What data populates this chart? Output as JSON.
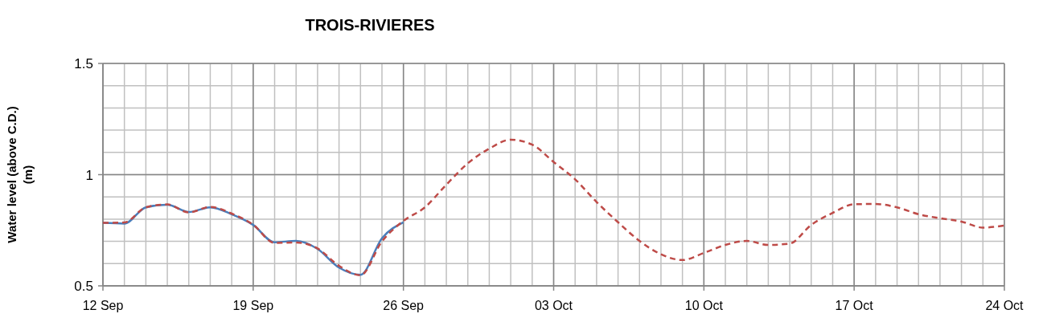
{
  "chart_data": {
    "type": "line",
    "title": "TROIS-RIVIERES",
    "ylabel": "Water level (above C.D.) (m)",
    "xlim": [
      "--09-12",
      "--10-24"
    ],
    "ylim": [
      0.5,
      1.5
    ],
    "yticks": [
      0.5,
      1,
      1.5
    ],
    "xticks": [
      {
        "value": "--09-12",
        "label": "12 Sep"
      },
      {
        "value": "--09-19",
        "label": "19 Sep"
      },
      {
        "value": "--09-26",
        "label": "26 Sep"
      },
      {
        "value": "--10-03",
        "label": "03 Oct"
      },
      {
        "value": "--10-10",
        "label": "10 Oct"
      },
      {
        "value": "--10-17",
        "label": "17 Oct"
      },
      {
        "value": "--10-24",
        "label": "24 Oct"
      }
    ],
    "grid": true,
    "marker": "none",
    "series": [
      {
        "color": "#4a7ebb",
        "line_style": "solid",
        "x": [
          "--09-12",
          "--09-13",
          "--09-14",
          "--09-15",
          "--09-16",
          "--09-17",
          "--09-18",
          "--09-19",
          "--09-20",
          "--09-21",
          "--09-22",
          "--09-23",
          "--09-24",
          "--09-25",
          "--09-26"
        ],
        "values": [
          0.783,
          0.78,
          0.853,
          0.865,
          0.832,
          0.853,
          0.822,
          0.774,
          0.696,
          0.702,
          0.666,
          0.582,
          0.55,
          0.714,
          0.786
        ]
      },
      {
        "color": "#be4b48",
        "line_style": "dashed",
        "x": [
          "--09-12",
          "--09-13",
          "--09-14",
          "--09-15",
          "--09-16",
          "--09-17",
          "--09-18",
          "--09-19",
          "--09-20",
          "--09-21",
          "--09-22",
          "--09-23",
          "--09-24",
          "--09-25",
          "--09-26",
          "--09-27",
          "--09-28",
          "--09-29",
          "--09-30",
          "--10-01",
          "--10-02",
          "--10-03",
          "--10-04",
          "--10-05",
          "--10-06",
          "--10-07",
          "--10-08",
          "--10-09",
          "--10-10",
          "--10-11",
          "--10-12",
          "--10-13",
          "--10-14",
          "--10-15",
          "--10-16",
          "--10-17",
          "--10-18",
          "--10-19",
          "--10-20",
          "--10-21",
          "--10-22",
          "--10-23",
          "--10-24"
        ],
        "values": [
          0.783,
          0.785,
          0.853,
          0.866,
          0.83,
          0.855,
          0.825,
          0.775,
          0.693,
          0.695,
          0.668,
          0.59,
          0.548,
          0.7,
          0.792,
          0.853,
          0.955,
          1.051,
          1.117,
          1.157,
          1.135,
          1.057,
          0.979,
          0.877,
          0.786,
          0.702,
          0.642,
          0.616,
          0.648,
          0.684,
          0.702,
          0.684,
          0.69,
          0.774,
          0.828,
          0.867,
          0.868,
          0.853,
          0.822,
          0.804,
          0.789,
          0.762,
          0.771
        ]
      }
    ]
  }
}
